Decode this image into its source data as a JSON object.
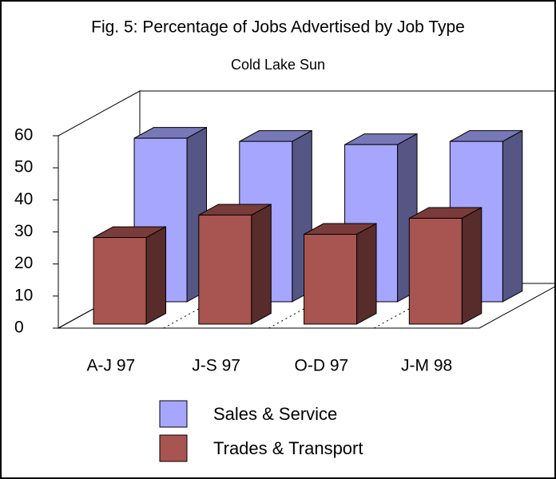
{
  "chart_data": {
    "type": "bar3d",
    "title": "Fig. 5: Percentage of Jobs Advertised by Job Type",
    "subtitle": "Cold Lake Sun",
    "categories": [
      "A-J 97",
      "J-S 97",
      "O-D 97",
      "J-M 98"
    ],
    "series": [
      {
        "name": "Sales & Service",
        "color": "#a6a6ff",
        "values": [
          51,
          50,
          49,
          50
        ]
      },
      {
        "name": "Trades & Transport",
        "color": "#a85450",
        "values": [
          27,
          34,
          28,
          33
        ]
      }
    ],
    "ylim": [
      0,
      60
    ],
    "yticks": [
      0,
      10,
      20,
      30,
      40,
      50,
      60
    ]
  }
}
